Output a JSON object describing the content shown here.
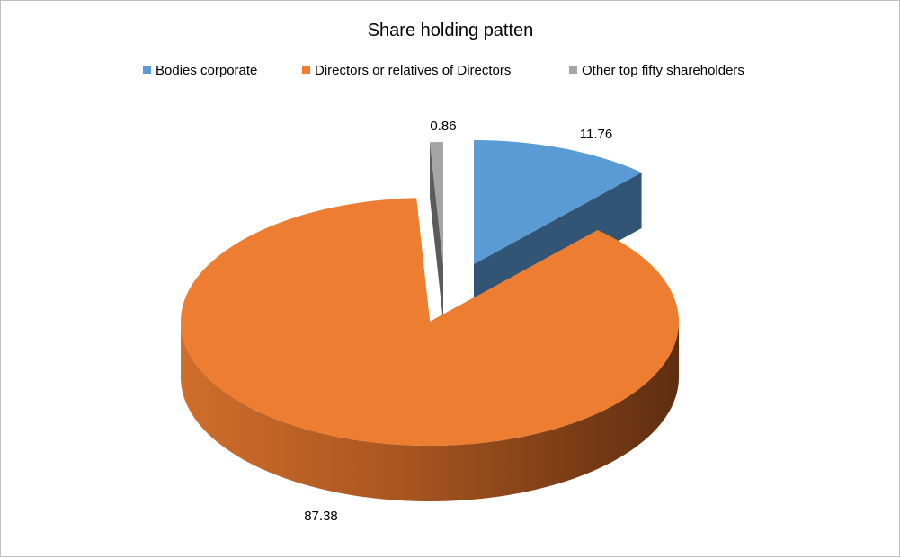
{
  "chart_data": {
    "type": "pie",
    "title": "Share holding patten",
    "legend_position": "top",
    "exploded": true,
    "three_d": true,
    "series": [
      {
        "categories": [
          "Bodies corporate",
          "Directors or relatives of Directors",
          "Other top fifty shareholders"
        ],
        "values": [
          11.76,
          87.38,
          0.86
        ],
        "labels": [
          "11.76",
          "87.38",
          "0.86"
        ],
        "colors": [
          "#5B9BD5",
          "#ED7D31",
          "#A5A5A5"
        ]
      }
    ]
  }
}
